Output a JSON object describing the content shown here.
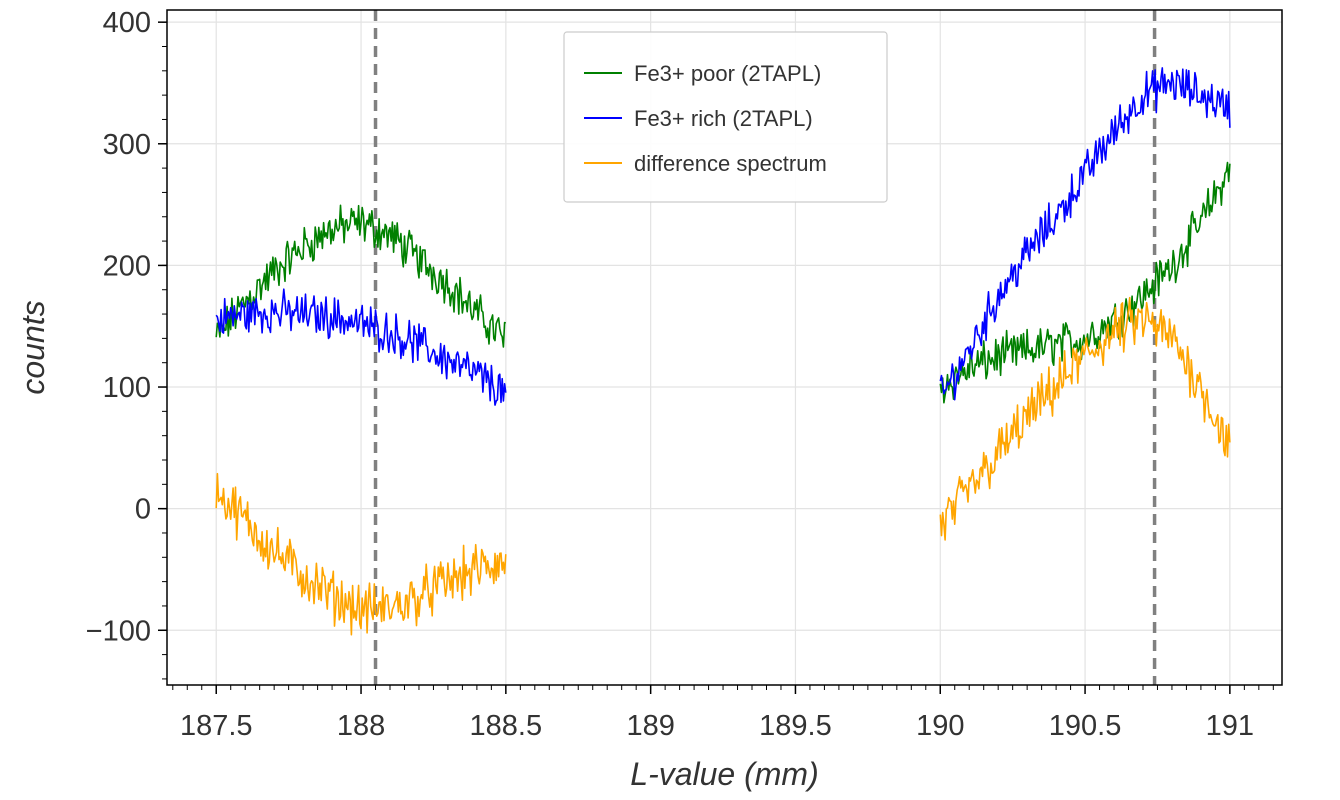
{
  "chart_data": {
    "type": "line",
    "title": "",
    "xlabel": "L-value (mm)",
    "ylabel": "counts",
    "xlim": [
      187.33,
      191.18
    ],
    "ylim": [
      -145,
      410
    ],
    "grid": true,
    "legend": "top-center",
    "x_ticks": [
      187.5,
      188,
      188.5,
      189,
      189.5,
      190,
      190.5,
      191
    ],
    "x_tick_labels": [
      "187.5",
      "188",
      "188.5",
      "189",
      "189.5",
      "190",
      "190.5",
      "191"
    ],
    "y_ticks": [
      -100,
      0,
      100,
      200,
      300,
      400
    ],
    "y_tick_labels": [
      "−100",
      "0",
      "100",
      "200",
      "300",
      "400"
    ],
    "vlines": [
      188.05,
      190.74
    ],
    "colors": {
      "poor": "#008000",
      "rich": "#0000ff",
      "diff": "#ffa500",
      "vline": "#808080"
    },
    "series": [
      {
        "name": "Fe3+ poor (2TAPL)",
        "color": "#008000",
        "segments": [
          {
            "x": [
              187.5,
              187.6,
              187.7,
              187.8,
              187.9,
              188.0,
              188.1,
              188.2,
              188.3,
              188.4,
              188.5
            ],
            "y": [
              140,
              170,
              195,
              215,
              230,
              235,
              225,
              205,
              185,
              160,
              140
            ]
          },
          {
            "x": [
              190.0,
              190.1,
              190.2,
              190.3,
              190.4,
              190.5,
              190.6,
              190.7,
              190.8,
              190.9,
              191.0
            ],
            "y": [
              100,
              115,
              125,
              130,
              135,
              140,
              155,
              175,
              200,
              235,
              280
            ]
          }
        ]
      },
      {
        "name": "Fe3+ rich (2TAPL)",
        "color": "#0000ff",
        "segments": [
          {
            "x": [
              187.5,
              187.6,
              187.7,
              187.8,
              187.9,
              188.0,
              188.1,
              188.2,
              188.3,
              188.4,
              188.5
            ],
            "y": [
              155,
              160,
              162,
              160,
              158,
              152,
              145,
              135,
              122,
              110,
              95
            ]
          },
          {
            "x": [
              190.0,
              190.1,
              190.2,
              190.3,
              190.4,
              190.5,
              190.6,
              190.7,
              190.8,
              190.9,
              191.0
            ],
            "y": [
              90,
              130,
              175,
              210,
              240,
              275,
              310,
              340,
              350,
              340,
              330
            ]
          }
        ]
      },
      {
        "name": "difference spectrum",
        "color": "#ffa500",
        "segments": [
          {
            "x": [
              187.5,
              187.6,
              187.7,
              187.8,
              187.9,
              188.0,
              188.1,
              188.2,
              188.3,
              188.4,
              188.5
            ],
            "y": [
              15,
              -10,
              -35,
              -55,
              -72,
              -83,
              -82,
              -72,
              -60,
              -50,
              -45
            ]
          },
          {
            "x": [
              190.0,
              190.1,
              190.2,
              190.3,
              190.4,
              190.5,
              190.6,
              190.7,
              190.8,
              190.9,
              191.0
            ],
            "y": [
              -15,
              15,
              45,
              75,
              100,
              125,
              145,
              155,
              140,
              100,
              50
            ]
          }
        ]
      }
    ]
  }
}
